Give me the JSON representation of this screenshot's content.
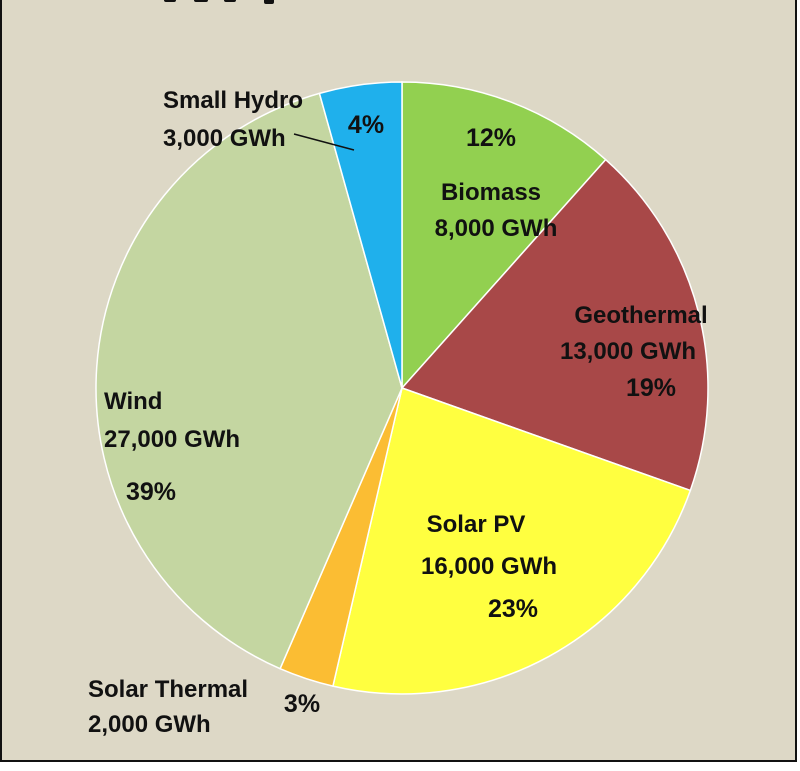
{
  "chart_data": {
    "type": "pie",
    "title": "",
    "slices": [
      {
        "name": "Biomass",
        "value_label": "8,000 GWh",
        "value": 8000,
        "percent": 12,
        "percent_label": "12%",
        "color": "#92d050"
      },
      {
        "name": "Geothermal",
        "value_label": "13,000 GWh",
        "value": 13000,
        "percent": 19,
        "percent_label": "19%",
        "color": "#a84848"
      },
      {
        "name": "Solar PV",
        "value_label": "16,000 GWh",
        "value": 16000,
        "percent": 23,
        "percent_label": "23%",
        "color": "#ffff40"
      },
      {
        "name": "Solar Thermal",
        "value_label": "2,000 GWh",
        "value": 2000,
        "percent": 3,
        "percent_label": "3%",
        "color": "#fbbd33"
      },
      {
        "name": "Wind",
        "value_label": "27,000 GWh",
        "value": 27000,
        "percent": 39,
        "percent_label": "39%",
        "color": "#c4d6a1"
      },
      {
        "name": "Small Hydro",
        "value_label": "3,000 GWh",
        "value": 3000,
        "percent": 4,
        "percent_label": "4%",
        "color": "#1fb0ec"
      }
    ]
  },
  "colors": {
    "background": "#ddd8c6",
    "slice_border": "#ffffff",
    "text": "#111111"
  }
}
